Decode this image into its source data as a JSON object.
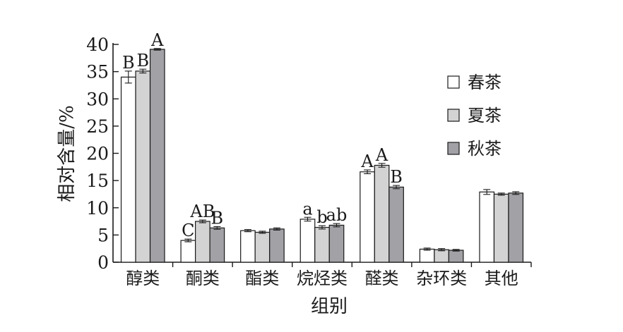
{
  "chart_data": {
    "type": "bar",
    "xlabel": "组别",
    "ylabel": "相对含量/%",
    "ylim": [
      0,
      40
    ],
    "yticks": [
      0,
      5,
      10,
      15,
      20,
      25,
      30,
      35,
      40
    ],
    "grid": false,
    "legend_position": "right",
    "categories": [
      "醇类",
      "酮类",
      "酯类",
      "烷烃类",
      "醛类",
      "杂环类",
      "其他"
    ],
    "series": [
      {
        "name": "春茶",
        "color": "#ffffff",
        "values": [
          34.0,
          4.0,
          5.8,
          7.9,
          16.6,
          2.4,
          12.9
        ],
        "errors": [
          1.1,
          0.25,
          0.2,
          0.35,
          0.35,
          0.2,
          0.45
        ],
        "labels": [
          "B",
          "C",
          "",
          "a",
          "A",
          "",
          ""
        ]
      },
      {
        "name": "夏茶",
        "color": "#d3d3d3",
        "values": [
          35.1,
          7.5,
          5.5,
          6.4,
          17.8,
          2.3,
          12.5
        ],
        "errors": [
          0.35,
          0.25,
          0.2,
          0.3,
          0.35,
          0.2,
          0.2
        ],
        "labels": [
          "B",
          "AB",
          "",
          "b",
          "A",
          "",
          ""
        ]
      },
      {
        "name": "秋茶",
        "color": "#a1a1a6",
        "values": [
          39.1,
          6.3,
          6.1,
          6.8,
          13.8,
          2.2,
          12.7
        ],
        "errors": [
          0.15,
          0.25,
          0.2,
          0.3,
          0.3,
          0.15,
          0.25
        ],
        "labels": [
          "A",
          "B",
          "",
          "ab",
          "B",
          "",
          ""
        ]
      }
    ]
  }
}
